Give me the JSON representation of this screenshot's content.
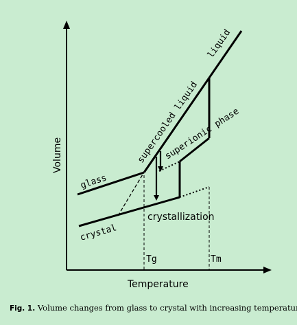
{
  "diagram": {
    "axis_x_label": "Temperature",
    "axis_y_label": "Volume",
    "curve_labels": {
      "glass": "glass",
      "crystal": "crystal",
      "supercooled_liquid": "supercooled liquid",
      "liquid": "liquid",
      "superionic_phase": "superionic phase",
      "crystallization": "crystallization"
    },
    "ticks": {
      "tg": "Tg",
      "tm": "Tm"
    }
  },
  "caption": {
    "label": "Fig. 1.",
    "text": "Volume changes from glass to crystal with increasing temperature."
  }
}
